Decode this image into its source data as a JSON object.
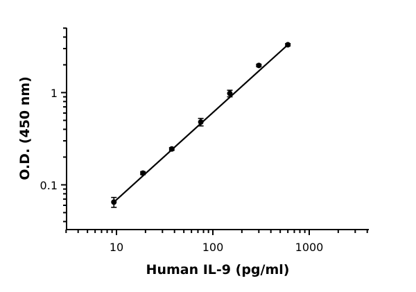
{
  "chart_data": {
    "type": "scatter",
    "title": "",
    "xlabel": "Human IL-9 (pg/ml)",
    "ylabel": "O.D. (450 nm)",
    "x_scale": "log",
    "y_scale": "log",
    "xlim": [
      3,
      5000
    ],
    "ylim": [
      0.04,
      5
    ],
    "x_ticks": [
      "10",
      "100",
      "1000"
    ],
    "y_ticks": [
      "0.1",
      "1"
    ],
    "grid": false,
    "series": [
      {
        "points": [
          {
            "x": 9.4,
            "y": 0.065,
            "err": 0.008
          },
          {
            "x": 18.8,
            "y": 0.134,
            "err": 0.005
          },
          {
            "x": 37.5,
            "y": 0.245,
            "err": 0.008
          },
          {
            "x": 75,
            "y": 0.48,
            "err": 0.045
          },
          {
            "x": 150,
            "y": 0.98,
            "err": 0.08
          },
          {
            "x": 300,
            "y": 1.97,
            "err": 0.06
          },
          {
            "x": 600,
            "y": 3.3,
            "err": 0.1
          }
        ],
        "fit": {
          "x_start": 9.4,
          "y_start": 0.065,
          "x_end": 600,
          "y_end": 3.3
        }
      }
    ]
  }
}
